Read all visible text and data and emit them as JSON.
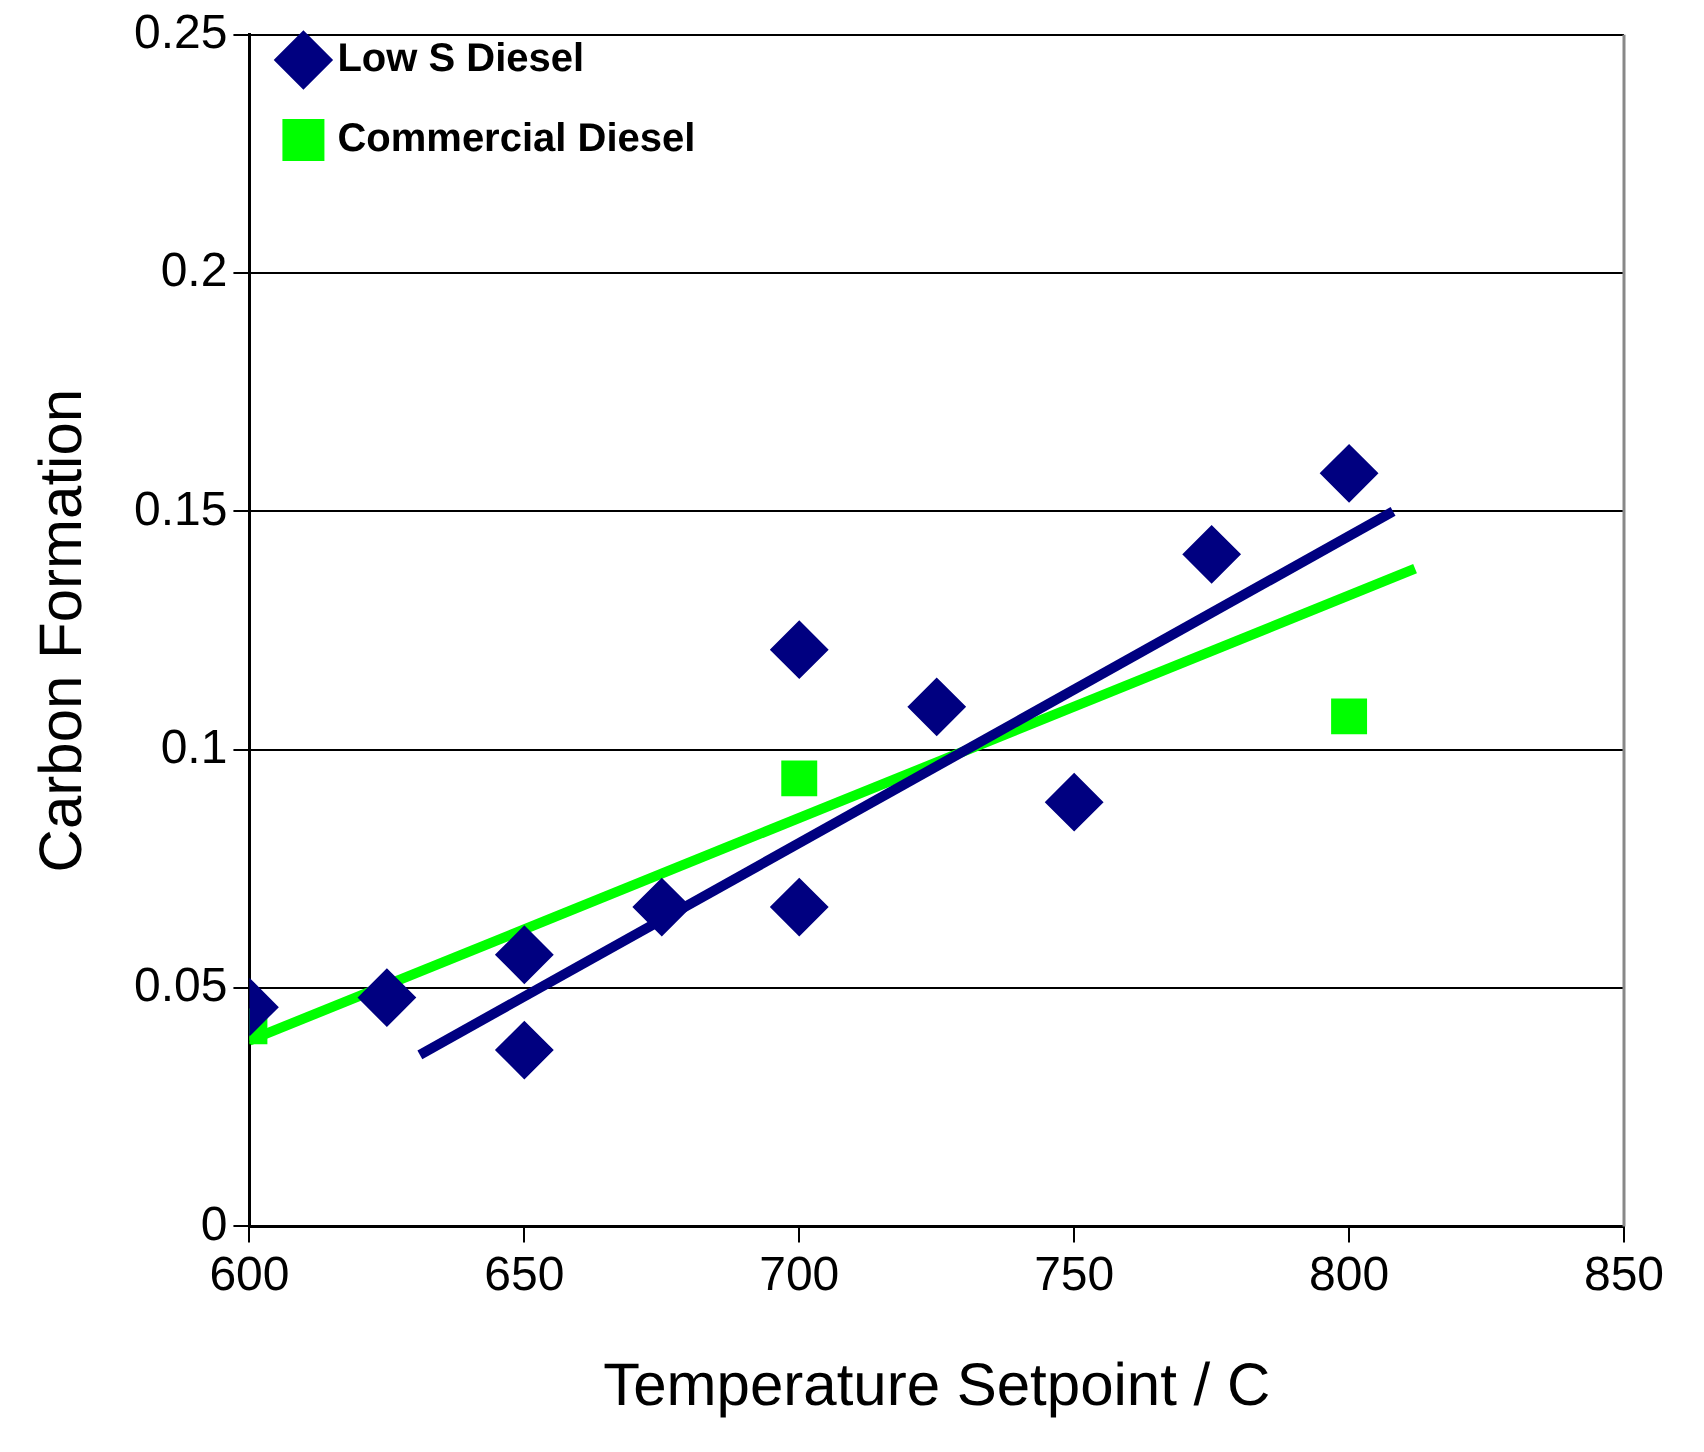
{
  "chart_data": {
    "type": "scatter",
    "xlabel": "Temperature Setpoint / C",
    "ylabel": "Carbon Formation",
    "xlim": [
      600,
      850
    ],
    "xticks": [
      600,
      650,
      700,
      750,
      800,
      850
    ],
    "ylim": [
      0,
      0.25
    ],
    "yticks": [
      0,
      0.05,
      0.1,
      0.15,
      0.2,
      0.25
    ],
    "grid": "y",
    "legend": "top left",
    "series": [
      {
        "name": "Low S Diesel",
        "type": "scatter",
        "marker": "diamond",
        "color": "#000080",
        "x": [
          600,
          625,
          650,
          650,
          675,
          700,
          700,
          725,
          750,
          775,
          800
        ],
        "values": [
          0.046,
          0.048,
          0.057,
          0.037,
          0.067,
          0.121,
          0.067,
          0.109,
          0.089,
          0.141,
          0.158
        ]
      },
      {
        "name": "Commercial Diesel",
        "type": "scatter",
        "marker": "square",
        "color": "#00ff00",
        "x": [
          600,
          700,
          800
        ],
        "values": [
          0.042,
          0.094,
          0.107
        ]
      },
      {
        "type": "line",
        "marker": "none",
        "color": "#000080",
        "x": [
          631,
          808
        ],
        "values": [
          0.036,
          0.15
        ]
      },
      {
        "type": "line",
        "marker": "none",
        "color": "#00ff00",
        "x": [
          600,
          812
        ],
        "values": [
          0.039,
          0.138
        ]
      }
    ]
  }
}
